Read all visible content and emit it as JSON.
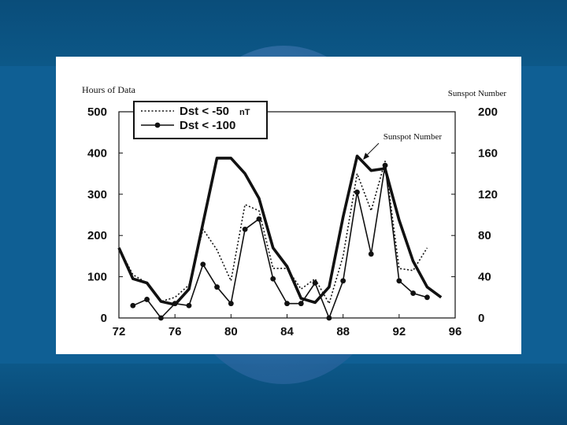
{
  "chart_data": {
    "type": "line",
    "left_axis_label": "Hours of Data",
    "right_axis_label": "Sunspot Number",
    "annotation": "Sunspot Number",
    "x_ticks": [
      "72",
      "76",
      "80",
      "84",
      "88",
      "92",
      "96"
    ],
    "y_ticks_left": [
      "0",
      "100",
      "200",
      "300",
      "400",
      "500"
    ],
    "y_ticks_right": [
      "0",
      "40",
      "80",
      "120",
      "160",
      "200"
    ],
    "xlim": [
      72,
      96
    ],
    "ylim_left": [
      0,
      500
    ],
    "ylim_right": [
      0,
      200
    ],
    "legend": {
      "entries": [
        "Dst < -50",
        "Dst < -100"
      ],
      "unit": "nT"
    },
    "series": [
      {
        "name": "Dst < -50",
        "style": "dotted",
        "axis": "left",
        "x": [
          72,
          73,
          74,
          75,
          76,
          77,
          78,
          79,
          80,
          81,
          82,
          83,
          84,
          85,
          86,
          87,
          88,
          89,
          90,
          91,
          92,
          93,
          94
        ],
        "y": [
          170,
          105,
          85,
          40,
          50,
          80,
          215,
          165,
          90,
          275,
          260,
          120,
          120,
          70,
          95,
          35,
          150,
          350,
          260,
          380,
          120,
          115,
          170
        ]
      },
      {
        "name": "Dst < -100",
        "style": "solid-markers",
        "axis": "left",
        "x": [
          73,
          74,
          75,
          76,
          77,
          78,
          79,
          80,
          81,
          82,
          83,
          84,
          85,
          86,
          87,
          88,
          89,
          90,
          91,
          92,
          93,
          94
        ],
        "y": [
          30,
          45,
          0,
          35,
          30,
          130,
          75,
          35,
          215,
          240,
          95,
          35,
          35,
          85,
          0,
          90,
          305,
          155,
          370,
          90,
          60,
          50
        ]
      },
      {
        "name": "Sunspot Number",
        "style": "thick",
        "axis": "right",
        "x": [
          72,
          73,
          74,
          75,
          76,
          77,
          78,
          79,
          80,
          81,
          82,
          83,
          84,
          85,
          86,
          87,
          88,
          89,
          90,
          91,
          92,
          93,
          94,
          95
        ],
        "y": [
          68,
          38,
          34,
          16,
          13,
          28,
          92,
          155,
          155,
          140,
          116,
          68,
          50,
          19,
          15,
          30,
          98,
          157,
          143,
          145,
          95,
          55,
          30,
          20
        ]
      }
    ]
  }
}
